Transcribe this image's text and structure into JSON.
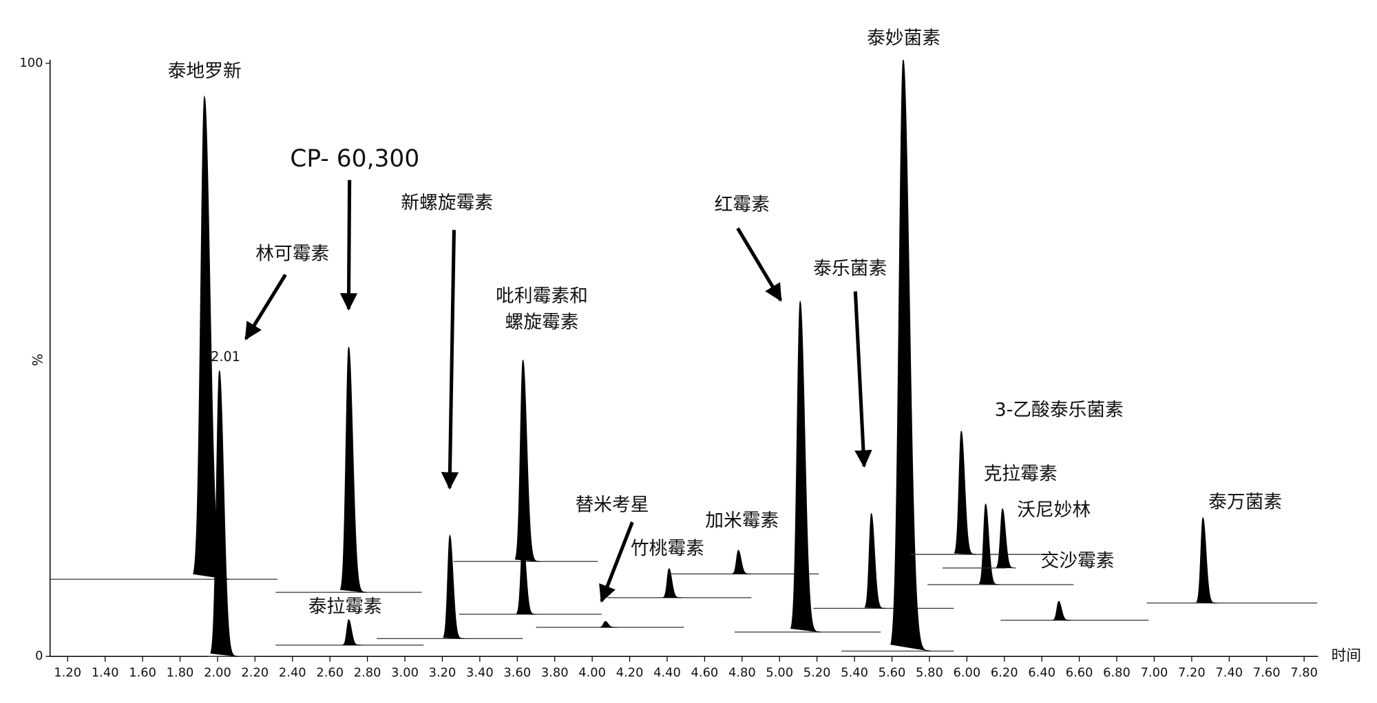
{
  "chart_data": {
    "type": "chromatogram",
    "xlabel": "时间",
    "ylabel": "%",
    "xlim": [
      1.106,
      7.875
    ],
    "ylim": [
      0,
      100
    ],
    "yticks": [
      0,
      100
    ],
    "xticks": [
      {
        "value": 1.2,
        "label": "1.20"
      },
      {
        "value": 1.4,
        "label": "1.40"
      },
      {
        "value": 1.6,
        "label": "1.60"
      },
      {
        "value": 1.8,
        "label": "1.80"
      },
      {
        "value": 2.0,
        "label": "2.00"
      },
      {
        "value": 2.2,
        "label": "2.20"
      },
      {
        "value": 2.4,
        "label": "2.40"
      },
      {
        "value": 2.6,
        "label": "2.60"
      },
      {
        "value": 2.8,
        "label": "2.80"
      },
      {
        "value": 3.0,
        "label": "3.00"
      },
      {
        "value": 3.2,
        "label": "3.20"
      },
      {
        "value": 3.4,
        "label": "3.40"
      },
      {
        "value": 3.6,
        "label": "3.60"
      },
      {
        "value": 3.8,
        "label": "3.80"
      },
      {
        "value": 4.0,
        "label": "4.00"
      },
      {
        "value": 4.2,
        "label": "4.20"
      },
      {
        "value": 4.4,
        "label": "4.40"
      },
      {
        "value": 4.6,
        "label": "4.60"
      },
      {
        "value": 4.8,
        "label": "4.80"
      },
      {
        "value": 5.0,
        "label": "5.00"
      },
      {
        "value": 5.2,
        "label": "5.20"
      },
      {
        "value": 5.4,
        "label": "5.40"
      },
      {
        "value": 5.6,
        "label": "5.60"
      },
      {
        "value": 5.8,
        "label": "5.80"
      },
      {
        "value": 6.0,
        "label": "6.00"
      },
      {
        "value": 6.2,
        "label": "6.20"
      },
      {
        "value": 6.4,
        "label": "6.40"
      },
      {
        "value": 6.6,
        "label": "6.60"
      },
      {
        "value": 6.8,
        "label": "6.80"
      },
      {
        "value": 7.0,
        "label": "7.00"
      },
      {
        "value": 7.2,
        "label": "7.20"
      },
      {
        "value": 7.4,
        "label": "7.40"
      },
      {
        "value": 7.6,
        "label": "7.60"
      },
      {
        "value": 7.8,
        "label": "7.80"
      }
    ],
    "color": "#000000",
    "peaks": [
      {
        "name": "泰地罗新",
        "rt": 1.93,
        "height": 94.4,
        "baseline": 13.0,
        "trace": [
          1.106,
          2.32
        ]
      },
      {
        "name": "林可霉素",
        "apex_label": "2.01",
        "rt": 2.01,
        "height": 48.2,
        "baseline": 0,
        "trace": [
          1.95,
          2.2
        ]
      },
      {
        "name": "CP- 60,300",
        "rt": 2.7,
        "height": 52.2,
        "baseline": 10.8,
        "trace": [
          2.31,
          3.09
        ]
      },
      {
        "name": "泰拉霉素",
        "rt": 2.7,
        "height": 6.2,
        "baseline": 1.9,
        "trace": [
          2.31,
          3.1
        ]
      },
      {
        "name": "新螺旋霉素",
        "rt": 3.24,
        "height": 20.4,
        "baseline": 3.0,
        "trace": [
          2.85,
          3.63
        ]
      },
      {
        "name": [
          "吡利霉素和",
          "螺旋霉素"
        ],
        "rt": 3.63,
        "height": 50.0,
        "baseline": 16.0,
        "trace": [
          3.26,
          4.03
        ]
      },
      {
        "rt": 3.63,
        "height": 19.7,
        "baseline": 7.1,
        "trace": [
          3.29,
          4.05
        ]
      },
      {
        "name": "替米考星",
        "rt": 4.07,
        "height": 5.9,
        "baseline": 4.9,
        "trace": [
          3.7,
          4.49
        ]
      },
      {
        "name": "竹桃霉素",
        "rt": 4.41,
        "height": 14.8,
        "baseline": 9.9,
        "trace": [
          4.08,
          4.85
        ]
      },
      {
        "name": "加米霉素",
        "rt": 4.78,
        "height": 17.9,
        "baseline": 13.9,
        "trace": [
          4.41,
          5.21
        ]
      },
      {
        "name": "红霉素",
        "rt": 5.11,
        "height": 59.9,
        "baseline": 4.1,
        "trace": [
          4.76,
          5.54
        ]
      },
      {
        "name": "泰乐菌素",
        "rt": 5.49,
        "height": 24.1,
        "baseline": 8.1,
        "trace": [
          5.18,
          5.93
        ]
      },
      {
        "name": "泰妙菌素",
        "rt": 5.66,
        "height": 100.6,
        "baseline": 0.9,
        "trace": [
          5.33,
          5.93
        ]
      },
      {
        "name": "3-乙酸泰乐菌素",
        "rt": 5.97,
        "height": 38.0,
        "baseline": 17.2,
        "trace": [
          5.7,
          6.47
        ]
      },
      {
        "name": "克拉霉素",
        "rt": 6.1,
        "height": 25.7,
        "baseline": 12.1,
        "trace": [
          5.79,
          6.57
        ]
      },
      {
        "name": "沃尼妙林",
        "rt": 6.19,
        "height": 24.9,
        "baseline": 14.9,
        "trace": [
          5.87,
          6.21
        ]
      },
      {
        "name": "交沙霉素",
        "rt": 6.49,
        "height": 9.3,
        "baseline": 6.1,
        "trace": [
          6.18,
          6.97
        ]
      },
      {
        "name": "泰万菌素",
        "rt": 7.26,
        "height": 23.4,
        "baseline": 9.0,
        "trace": [
          6.96,
          7.87
        ]
      }
    ]
  }
}
